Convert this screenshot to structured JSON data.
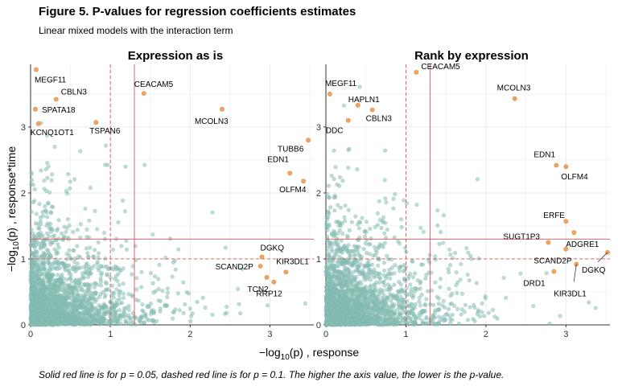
{
  "figure": {
    "title": "Figure 5. P-values for regression coefficients estimates",
    "subtitle": "Linear mixed models with the interaction term",
    "caption": "Solid red line is for p = 0.05, dashed red line is for p = 0.1. The higher the axis value, the lower is the p-value.",
    "xlabel_prefix": "−log",
    "xlabel_sub": "10",
    "xlabel_suffix": "(p) , response",
    "ylabel_prefix": "−log",
    "ylabel_sub": "10",
    "ylabel_suffix": "(p) , response*time"
  },
  "colors": {
    "points": "#88BFB6",
    "highlight": "#F4A460",
    "threshold": "#D9534F",
    "grid": "#EBEBEB"
  },
  "chart_data": [
    {
      "type": "scatter",
      "title": "Expression as is",
      "xlim": [
        0,
        3.55
      ],
      "ylim": [
        0,
        3.95
      ],
      "xticks": [
        "0",
        "1",
        "2",
        "3"
      ],
      "yticks": [
        "0",
        "1",
        "2",
        "3"
      ],
      "grid": true,
      "solid_line_x": 1.30103,
      "solid_line_y": 1.30103,
      "dashed_line_x": 1.0,
      "dashed_line_y": 1.0,
      "background_points": "dense cloud of ~3000 genes concentrated near the origin",
      "labeled_points": [
        {
          "label": "MEGF11",
          "x": 0.07,
          "y": 3.87
        },
        {
          "label": "CBLN3",
          "x": 0.32,
          "y": 3.42
        },
        {
          "label": "SPATA18",
          "x": 0.06,
          "y": 3.27
        },
        {
          "label": "KCNQ1OT1",
          "x": 0.1,
          "y": 3.05
        },
        {
          "label": "TSPAN6",
          "x": 0.82,
          "y": 3.07
        },
        {
          "label": "CEACAM5",
          "x": 1.42,
          "y": 3.51
        },
        {
          "label": "MCOLN3",
          "x": 2.4,
          "y": 3.27
        },
        {
          "label": "TUBB6",
          "x": 3.48,
          "y": 2.8
        },
        {
          "label": "EDN1",
          "x": 3.25,
          "y": 2.3
        },
        {
          "label": "OLFM4",
          "x": 3.42,
          "y": 2.18
        },
        {
          "label": "DGKQ",
          "x": 2.9,
          "y": 1.03
        },
        {
          "label": "SCAND2P",
          "x": 2.88,
          "y": 0.89
        },
        {
          "label": "KIR3DL1",
          "x": 3.2,
          "y": 0.8
        },
        {
          "label": "TCN2",
          "x": 2.96,
          "y": 0.72
        },
        {
          "label": "RRP12",
          "x": 3.05,
          "y": 0.65
        }
      ]
    },
    {
      "type": "scatter",
      "title": "Rank by expression",
      "xlim": [
        0,
        3.55
      ],
      "ylim": [
        0,
        3.95
      ],
      "xticks": [
        "0",
        "1",
        "2",
        "3"
      ],
      "yticks": [
        "0",
        "1",
        "2",
        "3"
      ],
      "grid": true,
      "solid_line_x": 1.30103,
      "solid_line_y": 1.30103,
      "dashed_line_x": 1.0,
      "dashed_line_y": 1.0,
      "background_points": "dense cloud of ~3000 genes concentrated near the origin",
      "labeled_points": [
        {
          "label": "MEGF11",
          "x": 0.05,
          "y": 3.5
        },
        {
          "label": "HAPLN1",
          "x": 0.4,
          "y": 3.33
        },
        {
          "label": "CBLN3",
          "x": 0.58,
          "y": 3.26
        },
        {
          "label": "DDC",
          "x": 0.28,
          "y": 3.1
        },
        {
          "label": "CEACAM5",
          "x": 1.13,
          "y": 3.83
        },
        {
          "label": "MCOLN3",
          "x": 2.36,
          "y": 3.43
        },
        {
          "label": "EDN1",
          "x": 2.88,
          "y": 2.42
        },
        {
          "label": "OLFM4",
          "x": 3.0,
          "y": 2.4
        },
        {
          "label": "ERFE",
          "x": 3.0,
          "y": 1.57
        },
        {
          "label": "SUGT1P3",
          "x": 2.78,
          "y": 1.25
        },
        {
          "label": "ADGRE1",
          "x": 3.1,
          "y": 1.4
        },
        {
          "label": "SCAND2P",
          "x": 3.0,
          "y": 1.15
        },
        {
          "label": "DGKQ",
          "x": 3.52,
          "y": 1.1
        },
        {
          "label": "DRD1",
          "x": 2.85,
          "y": 0.81
        },
        {
          "label": "KIR3DL1",
          "x": 3.13,
          "y": 0.92
        }
      ]
    }
  ]
}
